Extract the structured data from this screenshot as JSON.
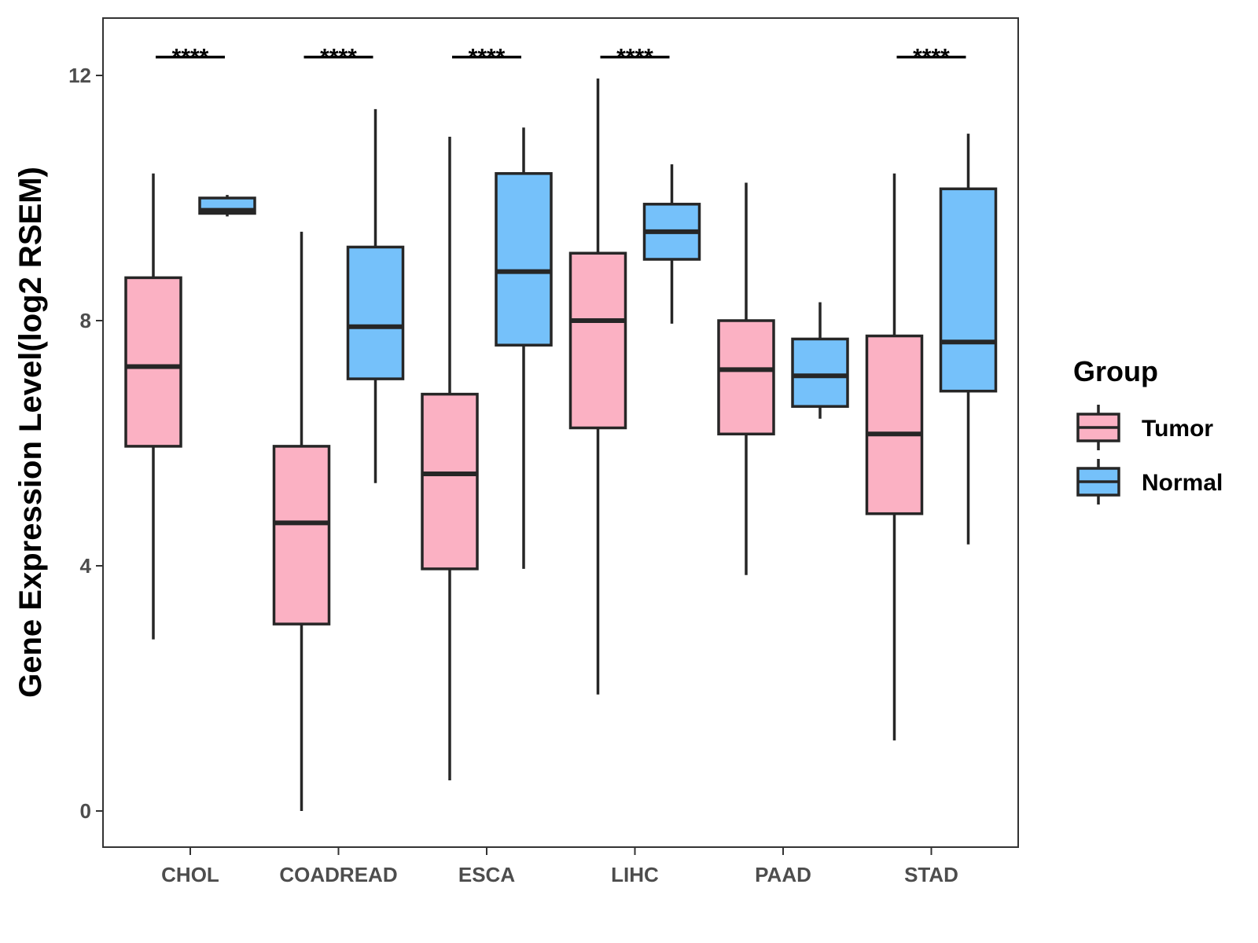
{
  "chart_data": {
    "type": "boxplot",
    "title": "",
    "xlabel": "",
    "ylabel": "Gene Expression Level(log2 RSEM)",
    "ylim": [
      -0.6,
      13.0
    ],
    "yticks": [
      0,
      4,
      8,
      12
    ],
    "ytick_labels": [
      "0",
      "4",
      "8",
      "12"
    ],
    "categories": [
      "CHOL",
      "COADREAD",
      "ESCA",
      "LIHC",
      "PAAD",
      "STAD"
    ],
    "grid": false,
    "legend": {
      "title": "Group",
      "position": "right",
      "entries": [
        "Tumor",
        "Normal"
      ]
    },
    "series": [
      {
        "name": "Tumor",
        "color": "#FBB1C3",
        "boxes": [
          {
            "category": "CHOL",
            "min": 2.8,
            "q1": 5.95,
            "median": 7.25,
            "q3": 8.7,
            "max": 10.4
          },
          {
            "category": "COADREAD",
            "min": 0.0,
            "q1": 3.05,
            "median": 4.7,
            "q3": 5.95,
            "max": 9.45
          },
          {
            "category": "ESCA",
            "min": 0.5,
            "q1": 3.95,
            "median": 5.5,
            "q3": 6.8,
            "max": 11.0
          },
          {
            "category": "LIHC",
            "min": 1.9,
            "q1": 6.25,
            "median": 8.0,
            "q3": 9.1,
            "max": 11.95
          },
          {
            "category": "PAAD",
            "min": 3.85,
            "q1": 6.15,
            "median": 7.2,
            "q3": 8.0,
            "max": 10.25
          },
          {
            "category": "STAD",
            "min": 1.15,
            "q1": 4.85,
            "median": 6.15,
            "q3": 7.75,
            "max": 10.4
          }
        ]
      },
      {
        "name": "Normal",
        "color": "#75C1FA",
        "boxes": [
          {
            "category": "CHOL",
            "min": 9.7,
            "q1": 9.75,
            "median": 9.8,
            "q3": 10.0,
            "max": 10.05
          },
          {
            "category": "COADREAD",
            "min": 5.35,
            "q1": 7.05,
            "median": 7.9,
            "q3": 9.2,
            "max": 11.45
          },
          {
            "category": "ESCA",
            "min": 3.95,
            "q1": 7.6,
            "median": 8.8,
            "q3": 10.4,
            "max": 11.15
          },
          {
            "category": "LIHC",
            "min": 7.95,
            "q1": 9.0,
            "median": 9.45,
            "q3": 9.9,
            "max": 10.55
          },
          {
            "category": "PAAD",
            "min": 6.4,
            "q1": 6.6,
            "median": 7.1,
            "q3": 7.7,
            "max": 8.3
          },
          {
            "category": "STAD",
            "min": 4.35,
            "q1": 6.85,
            "median": 7.65,
            "q3": 10.15,
            "max": 11.05
          }
        ]
      }
    ],
    "significance": [
      {
        "category": "CHOL",
        "label": "****"
      },
      {
        "category": "COADREAD",
        "label": "****"
      },
      {
        "category": "ESCA",
        "label": "****"
      },
      {
        "category": "LIHC",
        "label": "****"
      },
      {
        "category": "PAAD",
        "label": ""
      },
      {
        "category": "STAD",
        "label": "****"
      }
    ],
    "significance_level": 12.3,
    "colors": {
      "tumor": "#FBB1C3",
      "normal": "#75C1FA",
      "outline": "#262626",
      "panel_border": "#333333",
      "tick_text": "#4d4d4d"
    }
  }
}
